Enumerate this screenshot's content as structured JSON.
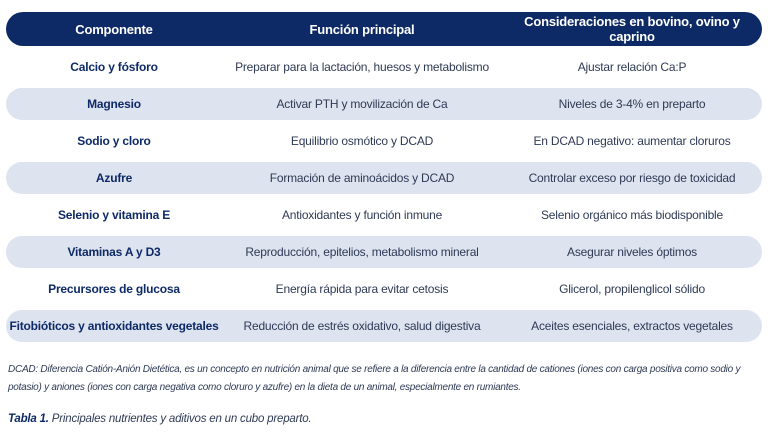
{
  "table": {
    "headers": [
      "Componente",
      "Función principal",
      "Consideraciones en bovino, ovino y caprino"
    ],
    "rows": [
      [
        "Calcio y fósforo",
        "Preparar para la lactación, huesos y metabolismo",
        "Ajustar relación Ca:P"
      ],
      [
        "Magnesio",
        "Activar PTH y movilización de Ca",
        "Niveles de 3-4% en preparto"
      ],
      [
        "Sodio y cloro",
        "Equilibrio osmótico y DCAD",
        "En DCAD negativo: aumentar cloruros"
      ],
      [
        "Azufre",
        "Formación de aminoácidos y DCAD",
        "Controlar exceso por riesgo de toxicidad"
      ],
      [
        "Selenio y vitamina E",
        "Antioxidantes y función inmune",
        "Selenio orgánico más biodisponible"
      ],
      [
        "Vitaminas A y D3",
        "Reproducción, epitelios, metabolismo mineral",
        "Asegurar niveles óptimos"
      ],
      [
        "Precursores de glucosa",
        "Energía rápida para evitar cetosis",
        "Glicerol, propilenglicol sólido"
      ],
      [
        "Fitobióticos y antioxidantes vegetales",
        "Reducción de estrés oxidativo, salud digestiva",
        "Aceites esenciales, extractos vegetales"
      ]
    ]
  },
  "footnote": "DCAD: Diferencia Catión-Anión Dietética, es un concepto en nutrición animal que se refiere a la diferencia entre la cantidad de cationes (iones con carga positiva como sodio y potasio) y aniones (iones con carga negativa como cloruro y azufre) en la dieta de un animal, especialmente en rumiantes.",
  "caption": {
    "label": "Tabla 1.",
    "text": " Principales nutrientes y aditivos en un cubo preparto."
  },
  "colors": {
    "header_bg": "#0e2a66",
    "row_shade": "#dde3ef",
    "text_dark": "#0e2a66"
  }
}
